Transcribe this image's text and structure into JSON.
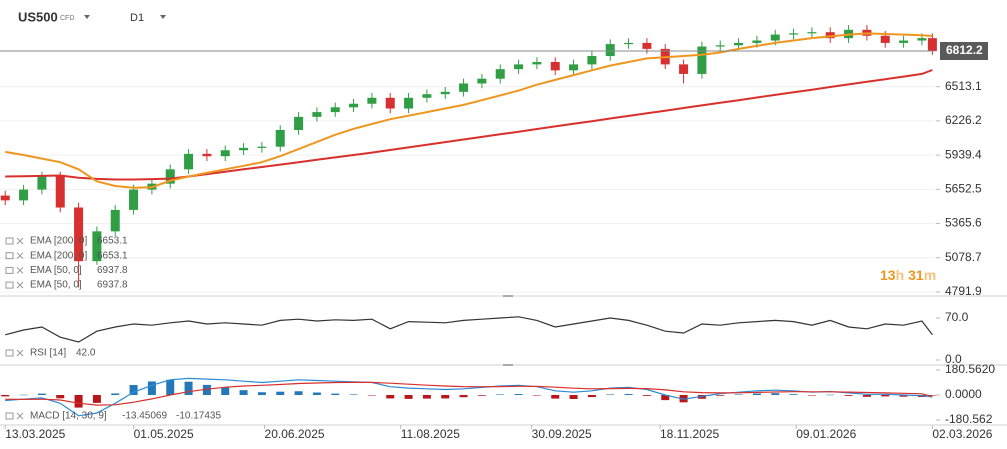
{
  "header": {
    "symbol": "US500",
    "kind": "CFD",
    "timeframe": "D1"
  },
  "chart_data": [
    {
      "type": "candlestick",
      "x": [
        "2025-03-13",
        "2025-03-20",
        "2025-03-27",
        "2025-04-03",
        "2025-04-10",
        "2025-04-17",
        "2025-04-24",
        "2025-05-01",
        "2025-05-08",
        "2025-05-15",
        "2025-05-22",
        "2025-05-29",
        "2025-06-05",
        "2025-06-12",
        "2025-06-19",
        "2025-06-26",
        "2025-07-03",
        "2025-07-10",
        "2025-07-17",
        "2025-07-24",
        "2025-07-31",
        "2025-08-07",
        "2025-08-14",
        "2025-08-21",
        "2025-08-28",
        "2025-09-04",
        "2025-09-11",
        "2025-09-18",
        "2025-09-25",
        "2025-10-02",
        "2025-10-09",
        "2025-10-16",
        "2025-10-23",
        "2025-10-30",
        "2025-11-06",
        "2025-11-13",
        "2025-11-20",
        "2025-11-27",
        "2025-12-04",
        "2025-12-11",
        "2025-12-18",
        "2025-12-25",
        "2026-01-01",
        "2026-01-08",
        "2026-01-15",
        "2026-01-22",
        "2026-01-29",
        "2026-02-05",
        "2026-02-12",
        "2026-02-19",
        "2026-02-26",
        "2026-03-02"
      ],
      "open": [
        5600,
        5560,
        5650,
        5760,
        5500,
        5050,
        5300,
        5480,
        5650,
        5700,
        5820,
        5950,
        5930,
        5980,
        6000,
        6010,
        6150,
        6260,
        6300,
        6340,
        6370,
        6420,
        6330,
        6420,
        6450,
        6470,
        6540,
        6580,
        6660,
        6700,
        6720,
        6650,
        6700,
        6770,
        6870,
        6880,
        6830,
        6700,
        6620,
        6850,
        6860,
        6880,
        6900,
        6950,
        6960,
        6970,
        6920,
        6990,
        6940,
        6880,
        6900,
        6920
      ],
      "high": [
        5640,
        5690,
        5800,
        5800,
        5540,
        5340,
        5520,
        5690,
        5740,
        5860,
        5990,
        5990,
        6020,
        6040,
        6050,
        6190,
        6300,
        6340,
        6380,
        6410,
        6460,
        6460,
        6460,
        6490,
        6510,
        6580,
        6620,
        6700,
        6740,
        6760,
        6760,
        6740,
        6810,
        6910,
        6920,
        6920,
        6870,
        6740,
        6890,
        6900,
        6920,
        6940,
        6990,
        7000,
        7010,
        7010,
        7030,
        7030,
        6980,
        6940,
        6960,
        6960
      ],
      "low": [
        5520,
        5520,
        5610,
        5460,
        4830,
        5020,
        5260,
        5440,
        5610,
        5660,
        5780,
        5890,
        5890,
        5940,
        5960,
        5970,
        6110,
        6220,
        6260,
        6300,
        6330,
        6290,
        6290,
        6380,
        6410,
        6430,
        6500,
        6540,
        6620,
        6660,
        6610,
        6610,
        6660,
        6730,
        6830,
        6790,
        6660,
        6540,
        6580,
        6810,
        6820,
        6840,
        6860,
        6910,
        6920,
        6880,
        6880,
        6900,
        6840,
        6840,
        6860,
        6780
      ],
      "close": [
        5560,
        5650,
        5760,
        5500,
        5050,
        5300,
        5480,
        5650,
        5700,
        5820,
        5950,
        5930,
        5980,
        6000,
        6010,
        6150,
        6260,
        6300,
        6340,
        6370,
        6420,
        6330,
        6420,
        6450,
        6470,
        6540,
        6580,
        6660,
        6700,
        6720,
        6650,
        6700,
        6770,
        6870,
        6880,
        6830,
        6700,
        6620,
        6850,
        6860,
        6880,
        6900,
        6950,
        6960,
        6970,
        6920,
        6990,
        6940,
        6880,
        6900,
        6920,
        6812.2
      ],
      "up_color": "#2f9e44",
      "down_color": "#d63031",
      "series": [
        {
          "name": "EMA [200, 0]",
          "color": "#d9302c",
          "values": [
            5760,
            5762,
            5765,
            5768,
            5750,
            5740,
            5735,
            5735,
            5738,
            5742,
            5760,
            5780,
            5800,
            5820,
            5840,
            5860,
            5880,
            5900,
            5920,
            5940,
            5960,
            5982,
            6004,
            6026,
            6048,
            6070,
            6092,
            6114,
            6136,
            6158,
            6180,
            6202,
            6224,
            6246,
            6268,
            6290,
            6312,
            6334,
            6356,
            6378,
            6400,
            6422,
            6444,
            6466,
            6488,
            6510,
            6532,
            6554,
            6576,
            6598,
            6620,
            6653.1
          ]
        },
        {
          "name": "EMA [50, 0]",
          "color": "#f0961e",
          "values": [
            5966,
            5940,
            5910,
            5880,
            5820,
            5720,
            5680,
            5665,
            5670,
            5725,
            5760,
            5790,
            5820,
            5850,
            5880,
            5930,
            5990,
            6050,
            6110,
            6160,
            6200,
            6240,
            6270,
            6300,
            6330,
            6360,
            6400,
            6440,
            6480,
            6530,
            6570,
            6610,
            6650,
            6690,
            6720,
            6750,
            6760,
            6770,
            6780,
            6800,
            6830,
            6855,
            6880,
            6900,
            6920,
            6935,
            6950,
            6960,
            6955,
            6950,
            6945,
            6937.8
          ]
        }
      ],
      "last_price": 6812.2,
      "countdown": [
        "13",
        "h",
        "31",
        "m"
      ],
      "xlim": [
        "2025-03-11",
        "2026-03-03"
      ],
      "ylim": [
        4758,
        7156
      ],
      "yticks": [
        6513.1,
        6226.2,
        5939.4,
        5652.5,
        5365.6,
        5078.7,
        4791.9
      ],
      "grid": true
    },
    {
      "type": "line",
      "series": [
        {
          "name": "RSI [14]",
          "color": "#333333",
          "value_label": "42.0",
          "values": [
            42,
            50,
            55,
            38,
            30,
            48,
            55,
            60,
            58,
            62,
            65,
            60,
            62,
            60,
            58,
            66,
            68,
            65,
            67,
            66,
            68,
            52,
            64,
            63,
            62,
            66,
            68,
            70,
            72,
            66,
            55,
            60,
            65,
            70,
            66,
            58,
            48,
            45,
            60,
            58,
            62,
            64,
            66,
            64,
            58,
            66,
            55,
            52,
            60,
            58,
            65,
            42.0
          ]
        }
      ],
      "ylim": [
        -8.3,
        105
      ],
      "yticks": [
        {
          "value": 70,
          "label": "70.0"
        },
        {
          "value": 0,
          "label": "0.0"
        }
      ]
    },
    {
      "type": "macd",
      "name": "MACD [14, 30, 9]",
      "series": [
        {
          "name": "MACD",
          "color": "#2a8bd6",
          "values": [
            -40,
            -30,
            -20,
            -60,
            -150,
            -130,
            -60,
            20,
            70,
            110,
            120,
            115,
            110,
            100,
            90,
            100,
            110,
            105,
            100,
            95,
            90,
            60,
            50,
            45,
            40,
            45,
            55,
            65,
            70,
            60,
            30,
            20,
            30,
            50,
            55,
            40,
            0,
            -30,
            -10,
            10,
            20,
            30,
            35,
            30,
            20,
            25,
            15,
            5,
            5,
            0,
            -5,
            -13.45069
          ]
        },
        {
          "name": "Signal",
          "color": "#d9302c",
          "values": [
            -30,
            -32,
            -30,
            -36,
            -59,
            -73,
            -71,
            -52,
            -28,
            0,
            24,
            42,
            56,
            65,
            70,
            76,
            83,
            87,
            90,
            91,
            91,
            85,
            78,
            71,
            65,
            61,
            60,
            61,
            63,
            62,
            56,
            49,
            45,
            46,
            48,
            46,
            37,
            23,
            17,
            15,
            16,
            19,
            22,
            24,
            23,
            23,
            21,
            18,
            15,
            12,
            9,
            -10.17435
          ]
        }
      ],
      "histogram": [
        -10,
        2,
        10,
        -24,
        -91,
        -57,
        11,
        72,
        98,
        110,
        96,
        73,
        54,
        35,
        20,
        24,
        27,
        18,
        10,
        4,
        -1,
        -25,
        -28,
        -26,
        -25,
        -16,
        -5,
        4,
        7,
        -2,
        -26,
        -29,
        -15,
        4,
        7,
        -6,
        -37,
        -53,
        -27,
        -5,
        4,
        11,
        13,
        6,
        -3,
        2,
        -6,
        -13,
        -10,
        -12,
        -14,
        -3.27634
      ],
      "positive_color": "#2378b8",
      "negative_color": "#b8171b",
      "ylim": [
        -216.7,
        209.5
      ],
      "yticks": [
        {
          "value": 180.562,
          "label": "180.5620"
        },
        {
          "value": 0,
          "label": "0.0000"
        },
        {
          "value": -180.562,
          "label": "-180.562"
        }
      ],
      "xticks": [
        {
          "value": "2025-03-13",
          "label": "13.03.2025"
        },
        {
          "value": "2025-05-01",
          "label": "01.05.2025"
        },
        {
          "value": "2025-06-20",
          "label": "20.06.2025"
        },
        {
          "value": "2025-08-11",
          "label": "11.08.2025"
        },
        {
          "value": "2025-09-30",
          "label": "30.09.2025"
        },
        {
          "value": "2025-11-18",
          "label": "18.11.2025"
        },
        {
          "value": "2026-01-09",
          "label": "09.01.2026"
        },
        {
          "value": "2026-03-02",
          "label": "02.03.2026"
        }
      ]
    }
  ]
}
